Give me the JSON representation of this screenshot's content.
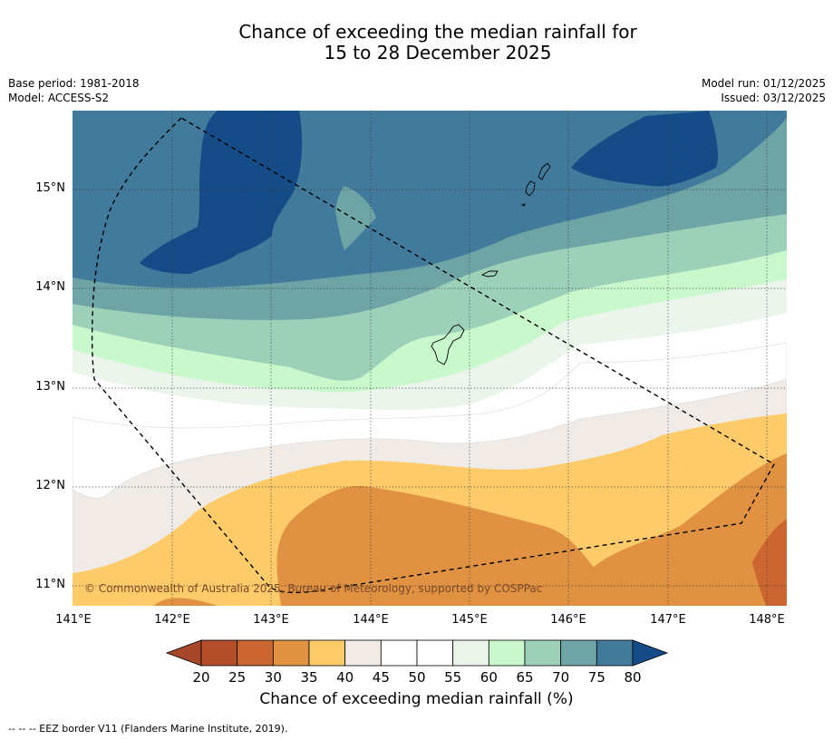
{
  "title_line1": "Chance of exceeding the median rainfall for",
  "title_line2": "15 to 28 December 2025",
  "info_left": [
    "Base period: 1981-2018",
    "Model: ACCESS-S2"
  ],
  "info_right": [
    "Model run: 01/12/2025",
    "Issued: 03/12/2025"
  ],
  "copyright": "© Commonwealth of Australia 2025, Bureau of Meteorology, supported by COSPPac",
  "lat_labels": [
    "15°N",
    "14°N",
    "13°N",
    "12°N",
    "11°N"
  ],
  "lon_labels": [
    "141°E",
    "142°E",
    "143°E",
    "144°E",
    "145°E",
    "146°E",
    "147°E",
    "148°E"
  ],
  "colorbar": {
    "ticks": [
      "20",
      "25",
      "30",
      "35",
      "40",
      "45",
      "50",
      "55",
      "60",
      "65",
      "70",
      "75",
      "80"
    ],
    "colors": [
      "#a8482a",
      "#b44d2a",
      "#cc6630",
      "#e09242",
      "#fdcb6a",
      "#f0ebe6",
      "#ffffff",
      "#ffffff",
      "#ebf5eb",
      "#c8f8cc",
      "#9dd0b8",
      "#6ea4a6",
      "#417a9a",
      "#154c88"
    ],
    "title": "Chance of exceeding median rainfall (%)"
  },
  "footer": "--  --  -- EEZ border V11 (Flanders Marine Institute, 2019)."
}
